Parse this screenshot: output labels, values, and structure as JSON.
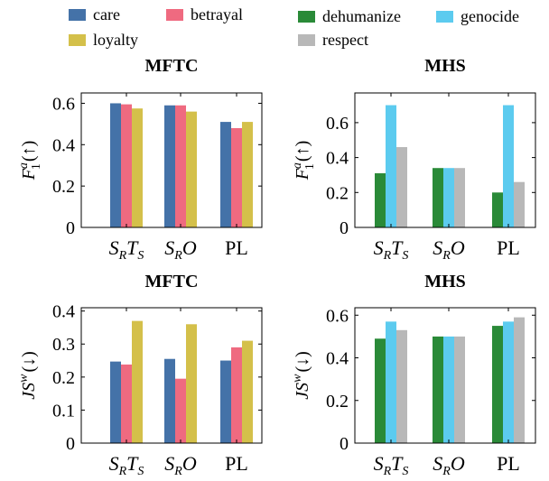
{
  "legends": [
    {
      "name": "legend-mftc",
      "items": [
        {
          "label": "care",
          "color": "#4472a8"
        },
        {
          "label": "betrayal",
          "color": "#ef6a80"
        },
        {
          "label": "loyalty",
          "color": "#d4c04a"
        }
      ]
    },
    {
      "name": "legend-mhs",
      "items": [
        {
          "label": "dehumanize",
          "color": "#2a8a38"
        },
        {
          "label": "genocide",
          "color": "#5ccbef"
        },
        {
          "label": "respect",
          "color": "#b8b8b8"
        }
      ]
    }
  ],
  "chart_data": [
    {
      "type": "bar",
      "title": "MFTC",
      "ylabel": {
        "main": "F",
        "sup": "a",
        "sub": "1",
        "arrow": "(↑)"
      },
      "categories": [
        {
          "main": "S",
          "sub": "R",
          "main2": "T",
          "sub2": "S"
        },
        {
          "main": "S",
          "sub": "R",
          "main2": "O",
          "sub2": ""
        },
        {
          "main": "PL",
          "sub": "",
          "main2": "",
          "sub2": ""
        }
      ],
      "series": [
        {
          "name": "care",
          "values": [
            0.6,
            0.59,
            0.51
          ]
        },
        {
          "name": "betrayal",
          "values": [
            0.595,
            0.59,
            0.48
          ]
        },
        {
          "name": "loyalty",
          "values": [
            0.575,
            0.56,
            0.51
          ]
        }
      ],
      "ylim": [
        0,
        0.65
      ],
      "yticks": [
        "0",
        "0.2",
        "0.4",
        "0.6"
      ],
      "ytick_values": [
        0,
        0.2,
        0.4,
        0.6
      ]
    },
    {
      "type": "bar",
      "title": "MHS",
      "ylabel": {
        "main": "F",
        "sup": "a",
        "sub": "1",
        "arrow": "(↑)"
      },
      "categories": [
        {
          "main": "S",
          "sub": "R",
          "main2": "T",
          "sub2": "S"
        },
        {
          "main": "S",
          "sub": "R",
          "main2": "O",
          "sub2": ""
        },
        {
          "main": "PL",
          "sub": "",
          "main2": "",
          "sub2": ""
        }
      ],
      "series": [
        {
          "name": "dehumanize",
          "values": [
            0.31,
            0.34,
            0.2
          ]
        },
        {
          "name": "genocide",
          "values": [
            0.7,
            0.34,
            0.7
          ]
        },
        {
          "name": "respect",
          "values": [
            0.46,
            0.34,
            0.26
          ]
        }
      ],
      "ylim": [
        0,
        0.77
      ],
      "yticks": [
        "0",
        "0.2",
        "0.4",
        "0.6"
      ],
      "ytick_values": [
        0,
        0.2,
        0.4,
        0.6
      ]
    },
    {
      "type": "bar",
      "title": "MFTC",
      "ylabel": {
        "main": "JS",
        "sup": "w",
        "sub": "",
        "arrow": "(↓)"
      },
      "categories": [
        {
          "main": "S",
          "sub": "R",
          "main2": "T",
          "sub2": "S"
        },
        {
          "main": "S",
          "sub": "R",
          "main2": "O",
          "sub2": ""
        },
        {
          "main": "PL",
          "sub": "",
          "main2": "",
          "sub2": ""
        }
      ],
      "series": [
        {
          "name": "care",
          "values": [
            0.247,
            0.255,
            0.25
          ]
        },
        {
          "name": "betrayal",
          "values": [
            0.238,
            0.195,
            0.29
          ]
        },
        {
          "name": "loyalty",
          "values": [
            0.37,
            0.36,
            0.31
          ]
        }
      ],
      "ylim": [
        0,
        0.41
      ],
      "yticks": [
        "0",
        "0.1",
        "0.2",
        "0.3",
        "0.4"
      ],
      "ytick_values": [
        0,
        0.1,
        0.2,
        0.3,
        0.4
      ]
    },
    {
      "type": "bar",
      "title": "MHS",
      "ylabel": {
        "main": "JS",
        "sup": "w",
        "sub": "",
        "arrow": "(↓)"
      },
      "categories": [
        {
          "main": "S",
          "sub": "R",
          "main2": "T",
          "sub2": "S"
        },
        {
          "main": "S",
          "sub": "R",
          "main2": "O",
          "sub2": ""
        },
        {
          "main": "PL",
          "sub": "",
          "main2": "",
          "sub2": ""
        }
      ],
      "series": [
        {
          "name": "dehumanize",
          "values": [
            0.49,
            0.5,
            0.55
          ]
        },
        {
          "name": "genocide",
          "values": [
            0.57,
            0.5,
            0.57
          ]
        },
        {
          "name": "respect",
          "values": [
            0.53,
            0.5,
            0.59
          ]
        }
      ],
      "ylim": [
        0,
        0.635
      ],
      "yticks": [
        "0",
        "0.2",
        "0.4",
        "0.6"
      ],
      "ytick_values": [
        0,
        0.2,
        0.4,
        0.6
      ]
    }
  ]
}
